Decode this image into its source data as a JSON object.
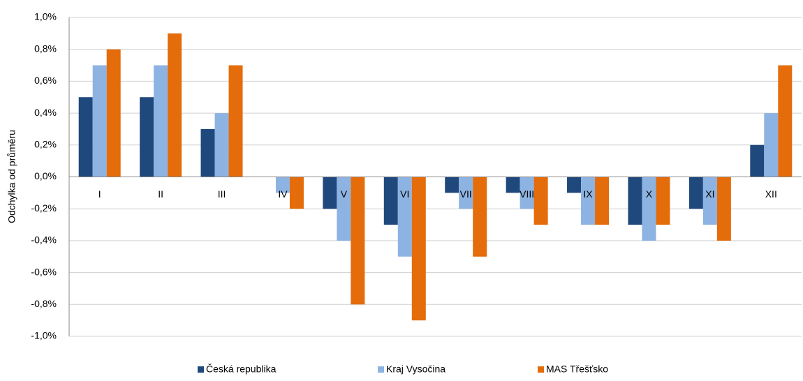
{
  "chart_data": {
    "type": "bar",
    "y_label": "Odchylka od průměru",
    "categories": [
      "I",
      "II",
      "III",
      "IV",
      "V",
      "VI",
      "VII",
      "VIII",
      "IX",
      "X",
      "XI",
      "XII"
    ],
    "series": [
      {
        "name": "Česká republika",
        "color": "#1f497d",
        "values": [
          0.5,
          0.5,
          0.3,
          0,
          -0.2,
          -0.3,
          -0.1,
          -0.1,
          -0.1,
          -0.3,
          -0.2,
          0.2
        ]
      },
      {
        "name": "Kraj Vysočina",
        "color": "#8db3e2",
        "values": [
          0.7,
          0.7,
          0.4,
          -0.1,
          -0.4,
          -0.5,
          -0.2,
          -0.2,
          -0.3,
          -0.4,
          -0.3,
          0.4
        ]
      },
      {
        "name": "MAS Třešťsko",
        "color": "#e46c0a",
        "values": [
          0.8,
          0.9,
          0.7,
          -0.2,
          -0.8,
          -0.9,
          -0.5,
          -0.3,
          -0.3,
          -0.3,
          -0.4,
          0.7
        ]
      }
    ],
    "ylim": [
      -1.0,
      1.0
    ],
    "yticks": [
      {
        "value": 1.0,
        "label": "1,0%"
      },
      {
        "value": 0.8,
        "label": "0,8%"
      },
      {
        "value": 0.6,
        "label": "0,6%"
      },
      {
        "value": 0.4,
        "label": "0,4%"
      },
      {
        "value": 0.2,
        "label": "0,2%"
      },
      {
        "value": 0,
        "label": "0,0%"
      },
      {
        "value": -0.2,
        "label": "-0,2%"
      },
      {
        "value": -0.4,
        "label": "-0,4%"
      },
      {
        "value": -0.6,
        "label": "-0,6%"
      },
      {
        "value": -0.8,
        "label": "-0,8%"
      },
      {
        "value": -1.0,
        "label": "-1,0%"
      }
    ],
    "grid": true,
    "legend": "bottom"
  }
}
